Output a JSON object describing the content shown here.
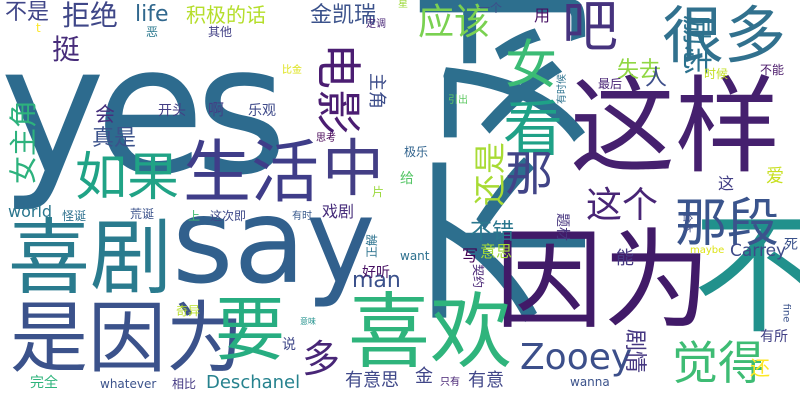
{
  "colors": {
    "background": "#ffffff",
    "palette": [
      "#440154",
      "#482878",
      "#3e4a89",
      "#31688e",
      "#26828e",
      "#1f9e89",
      "#35b779",
      "#6ece58",
      "#b5de2b",
      "#fde725"
    ]
  },
  "words": [
    {
      "id": "w-yes",
      "text": "yes",
      "color": "#2d6b8e"
    },
    {
      "id": "w-buzhi",
      "text": "不对",
      "color": "#2d6f8e"
    },
    {
      "id": "w-zheyang",
      "text": "这样",
      "color": "#45206e"
    },
    {
      "id": "w-yinwei",
      "text": "因为",
      "color": "#411a68"
    },
    {
      "id": "w-xiju",
      "text": "喜剧",
      "color": "#2a7b8e"
    },
    {
      "id": "w-say",
      "text": "say",
      "color": "#31608d"
    },
    {
      "id": "w-bu",
      "text": "不",
      "color": "#21918c"
    },
    {
      "id": "w-xihuan",
      "text": "喜欢",
      "color": "#2fb47c"
    },
    {
      "id": "w-shiyinwei",
      "text": "是因为",
      "color": "#3b528b"
    },
    {
      "id": "w-shenghuo",
      "text": "生活",
      "color": "#3f3d89"
    },
    {
      "id": "w-henduo",
      "text": "很多",
      "color": "#31718e"
    },
    {
      "id": "w-ruguo",
      "text": "如果",
      "color": "#20a386"
    },
    {
      "id": "w-yao",
      "text": "要",
      "color": "#27ad81"
    },
    {
      "id": "w-zhong",
      "text": "中",
      "color": "#433e85"
    },
    {
      "id": "w-kan",
      "text": "看",
      "color": "#1fa187"
    },
    {
      "id": "w-na",
      "text": "那",
      "color": "#414487"
    },
    {
      "id": "w-naduan",
      "text": "那段",
      "color": "#3a548c"
    },
    {
      "id": "w-dianying",
      "text": "电影",
      "color": "#4b1d72"
    },
    {
      "id": "w-zooey",
      "text": "Zooey",
      "color": "#3c4f8a"
    },
    {
      "id": "w-juede",
      "text": "觉得",
      "color": "#3ebc74"
    },
    {
      "id": "w-nv",
      "text": "女",
      "color": "#3bbb75"
    },
    {
      "id": "w-ba",
      "text": "吧",
      "color": "#46337e"
    },
    {
      "id": "w-yinggai",
      "text": "应该",
      "color": "#7ad151"
    },
    {
      "id": "w-zhege",
      "text": "这个",
      "color": "#482576"
    },
    {
      "id": "w-duo",
      "text": "多",
      "color": "#482677"
    },
    {
      "id": "w-nvzhujiao",
      "text": "女主角",
      "color": "#2db27d"
    },
    {
      "id": "w-jujue",
      "text": "拒绝",
      "color": "#3f4788"
    },
    {
      "id": "w-jiji",
      "text": "积极的话",
      "color": "#b5de2b"
    },
    {
      "id": "w-jinkairui",
      "text": "金凯瑞",
      "color": "#3b528b"
    },
    {
      "id": "w-buzheng",
      "text": "不是",
      "color": "#404688"
    },
    {
      "id": "w-life",
      "text": "life",
      "color": "#31688e"
    },
    {
      "id": "w-ting",
      "text": "挺",
      "color": "#472c7a"
    },
    {
      "id": "w-lizhi",
      "text": "励志",
      "color": "#2c728e"
    },
    {
      "id": "w-shiqu",
      "text": "失去",
      "color": "#90d743"
    },
    {
      "id": "w-ren",
      "text": "人",
      "color": "#3d4e8a"
    },
    {
      "id": "w-hui",
      "text": "会",
      "color": "#46307e"
    },
    {
      "id": "w-zhenshi",
      "text": "真是",
      "color": "#3b528b"
    },
    {
      "id": "w-a",
      "text": "啊",
      "color": "#424086"
    },
    {
      "id": "w-kaitou",
      "text": "开头",
      "color": "#433d84"
    },
    {
      "id": "w-leguan",
      "text": "乐观",
      "color": "#3e4989"
    },
    {
      "id": "w-zhujiao",
      "text": "主角",
      "color": "#3d4d8a"
    },
    {
      "id": "w-haishi",
      "text": "还是",
      "color": "#a8db34"
    },
    {
      "id": "w-bucuo",
      "text": "不错",
      "color": "#2a778e"
    },
    {
      "id": "w-xiju2",
      "text": "戏剧",
      "color": "#472d7b"
    },
    {
      "id": "w-man",
      "text": "man",
      "color": "#3b518b"
    },
    {
      "id": "w-world",
      "text": "world",
      "color": "#2a768e"
    },
    {
      "id": "w-deschanel",
      "text": "Deschanel",
      "color": "#26828e"
    },
    {
      "id": "w-carrey",
      "text": "Carrey",
      "color": "#3e4a89"
    },
    {
      "id": "w-juqing",
      "text": "剧情",
      "color": "#453781"
    },
    {
      "id": "w-youyisi",
      "text": "有意思",
      "color": "#3f4889"
    },
    {
      "id": "w-youyi",
      "text": "有意",
      "color": "#404688"
    },
    {
      "id": "w-huan",
      "text": "还",
      "color": "#fde725"
    },
    {
      "id": "w-ai",
      "text": "爱",
      "color": "#c8e020"
    },
    {
      "id": "w-zhe",
      "text": "这",
      "color": "#423f85"
    },
    {
      "id": "w-yisi",
      "text": "意思",
      "color": "#a2da37"
    },
    {
      "id": "w-xie",
      "text": "写",
      "color": "#440154"
    },
    {
      "id": "w-geixu",
      "text": "给",
      "color": "#56c667"
    },
    {
      "id": "w-gei",
      "text": "有所",
      "color": "#424186"
    },
    {
      "id": "w-jin",
      "text": "金",
      "color": "#404688"
    },
    {
      "id": "w-wanquan",
      "text": "完全",
      "color": "#2fb47c"
    },
    {
      "id": "w-whatever",
      "text": "whatever",
      "color": "#3b528b"
    },
    {
      "id": "w-xiangbi",
      "text": "相比",
      "color": "#443983"
    },
    {
      "id": "w-wanna",
      "text": "wanna",
      "color": "#3b528b"
    },
    {
      "id": "w-shuo",
      "text": "说",
      "color": "#3f4788"
    },
    {
      "id": "w-qiyi",
      "text": "奇异",
      "color": "#b8de29"
    },
    {
      "id": "w-haoting",
      "text": "好听",
      "color": "#471063"
    },
    {
      "id": "w-neng",
      "text": "能",
      "color": "#453882"
    },
    {
      "id": "w-ticai",
      "text": "题材",
      "color": "#45337d"
    },
    {
      "id": "w-zhengjie",
      "text": "正解",
      "color": "#2c728e"
    },
    {
      "id": "w-want",
      "text": "want",
      "color": "#2d708e"
    },
    {
      "id": "w-qiyue",
      "text": "契约",
      "color": "#482475"
    },
    {
      "id": "w-guaidan",
      "text": "怪诞",
      "color": "#2d708e"
    },
    {
      "id": "w-huangdan",
      "text": "荒诞",
      "color": "#3b528b"
    },
    {
      "id": "w-shang",
      "text": "上",
      "color": "#3fbc73"
    },
    {
      "id": "w-zheci",
      "text": "这次即",
      "color": "#3e4989"
    },
    {
      "id": "w-pian",
      "text": "片",
      "color": "#9bd93c"
    },
    {
      "id": "w-youshi",
      "text": "有时",
      "color": "#38598c"
    },
    {
      "id": "w-jile",
      "text": "极乐",
      "color": "#32648e"
    },
    {
      "id": "w-sikao",
      "text": "思考",
      "color": "#440154"
    },
    {
      "id": "w-biji",
      "text": "比金",
      "color": "#dde318"
    },
    {
      "id": "w-yinchu",
      "text": "引出",
      "color": "#5ec962"
    },
    {
      "id": "w-yige",
      "text": "一个",
      "color": "#3d4e8a"
    },
    {
      "id": "w-yong",
      "text": "用",
      "color": "#471063"
    },
    {
      "id": "w-dingdiao",
      "text": "定调",
      "color": "#482677"
    },
    {
      "id": "w-xing",
      "text": "星",
      "color": "#9dd93b"
    },
    {
      "id": "w-qita",
      "text": "其他",
      "color": "#424086"
    },
    {
      "id": "w-e",
      "text": "恶",
      "color": "#2a788e"
    },
    {
      "id": "w-t",
      "text": "t",
      "color": "#fde725"
    },
    {
      "id": "w-youshihou",
      "text": "有时候",
      "color": "#2c728e"
    },
    {
      "id": "w-zuihou",
      "text": "最后",
      "color": "#482374"
    },
    {
      "id": "w-buneng",
      "text": "不能",
      "color": "#481668"
    },
    {
      "id": "w-shihou",
      "text": "时候",
      "color": "#c2df23"
    },
    {
      "id": "w-heben",
      "text": "合本",
      "color": "#3d4e8a"
    },
    {
      "id": "w-maybe",
      "text": "maybe",
      "color": "#dde318"
    },
    {
      "id": "w-si",
      "text": "死",
      "color": "#3b528b"
    },
    {
      "id": "w-fine",
      "text": "fine",
      "color": "#3b528b"
    },
    {
      "id": "w-yiwei",
      "text": "意味",
      "color": "#21918c"
    },
    {
      "id": "w-zhiyou",
      "text": "只有",
      "color": "#482475"
    }
  ]
}
